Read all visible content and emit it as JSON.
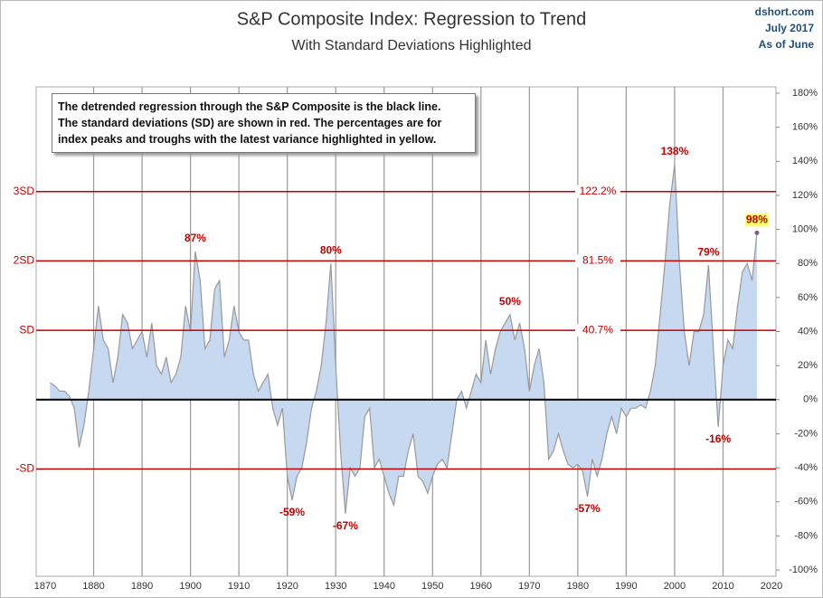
{
  "chart_data": {
    "type": "area",
    "title": "S&P Composite Index: Regression to Trend",
    "subtitle": "With Standard Deviations Highlighted",
    "source": "dshort.com",
    "date": "July 2017",
    "as_of": "As of June",
    "note": [
      "The detrended regression through the S&P Composite is the black line.",
      "The standard deviations (SD) are shown in red.  The percentages are for",
      "index peaks and troughs with the latest variance highlighted in yellow."
    ],
    "x": [
      1871,
      1872,
      1873,
      1874,
      1875,
      1876,
      1877,
      1878,
      1879,
      1880,
      1881,
      1882,
      1883,
      1884,
      1885,
      1886,
      1887,
      1888,
      1889,
      1890,
      1891,
      1892,
      1893,
      1894,
      1895,
      1896,
      1897,
      1898,
      1899,
      1900,
      1901,
      1902,
      1903,
      1904,
      1905,
      1906,
      1907,
      1908,
      1909,
      1910,
      1911,
      1912,
      1913,
      1914,
      1915,
      1916,
      1917,
      1918,
      1919,
      1920,
      1921,
      1922,
      1923,
      1924,
      1925,
      1926,
      1927,
      1928,
      1929,
      1930,
      1931,
      1932,
      1933,
      1934,
      1935,
      1936,
      1937,
      1938,
      1939,
      1940,
      1941,
      1942,
      1943,
      1944,
      1945,
      1946,
      1947,
      1948,
      1949,
      1950,
      1951,
      1952,
      1953,
      1954,
      1955,
      1956,
      1957,
      1958,
      1959,
      1960,
      1961,
      1962,
      1963,
      1964,
      1965,
      1966,
      1967,
      1968,
      1969,
      1970,
      1971,
      1972,
      1973,
      1974,
      1975,
      1976,
      1977,
      1978,
      1979,
      1980,
      1981,
      1982,
      1983,
      1984,
      1985,
      1986,
      1987,
      1988,
      1989,
      1990,
      1991,
      1992,
      1993,
      1994,
      1995,
      1996,
      1997,
      1998,
      1999,
      2000,
      2001,
      2002,
      2003,
      2004,
      2005,
      2006,
      2007,
      2008,
      2009,
      2010,
      2011,
      2012,
      2013,
      2014,
      2015,
      2016,
      2017
    ],
    "values": [
      10,
      8,
      5,
      5,
      2,
      -5,
      -28,
      -15,
      5,
      30,
      55,
      35,
      30,
      10,
      25,
      50,
      45,
      30,
      35,
      40,
      25,
      45,
      20,
      15,
      25,
      10,
      15,
      25,
      55,
      40,
      87,
      70,
      30,
      35,
      65,
      70,
      25,
      35,
      55,
      40,
      35,
      35,
      15,
      5,
      10,
      15,
      -5,
      -15,
      -5,
      -45,
      -59,
      -45,
      -40,
      -25,
      -5,
      5,
      20,
      45,
      80,
      20,
      -30,
      -67,
      -40,
      -45,
      -40,
      -10,
      -5,
      -40,
      -35,
      -45,
      -55,
      -62,
      -45,
      -45,
      -30,
      -20,
      -45,
      -48,
      -55,
      -45,
      -38,
      -35,
      -40,
      -20,
      0,
      5,
      -5,
      5,
      15,
      10,
      35,
      15,
      30,
      40,
      45,
      50,
      35,
      45,
      30,
      5,
      20,
      30,
      10,
      -35,
      -30,
      -20,
      -30,
      -38,
      -40,
      -38,
      -42,
      -57,
      -35,
      -45,
      -35,
      -20,
      -10,
      -20,
      -5,
      -10,
      -5,
      -5,
      -3,
      -5,
      5,
      20,
      50,
      80,
      115,
      138,
      80,
      40,
      20,
      40,
      40,
      50,
      79,
      30,
      -16,
      20,
      35,
      30,
      55,
      75,
      80,
      70,
      98
    ],
    "color": "#c6d9f0",
    "line_color": "#999999",
    "xlim": [
      1870,
      2020
    ],
    "xticks": [
      1870,
      1880,
      1890,
      1900,
      1910,
      1920,
      1930,
      1940,
      1950,
      1960,
      1970,
      1980,
      1990,
      2000,
      2010,
      2020
    ],
    "ylim": [
      -100,
      180
    ],
    "yticks": [
      {
        "value": -100,
        "label": "-100%"
      },
      {
        "value": -80,
        "label": "-80%"
      },
      {
        "value": -60,
        "label": "-60%"
      },
      {
        "value": -40,
        "label": "-40%"
      },
      {
        "value": -20,
        "label": "-20%"
      },
      {
        "value": 0,
        "label": "0%"
      },
      {
        "value": 20,
        "label": "20%"
      },
      {
        "value": 40,
        "label": "40%"
      },
      {
        "value": 60,
        "label": "60%"
      },
      {
        "value": 80,
        "label": "80%"
      },
      {
        "value": 100,
        "label": "100%"
      },
      {
        "value": 120,
        "label": "120%"
      },
      {
        "value": 140,
        "label": "140%"
      },
      {
        "value": 160,
        "label": "160%"
      },
      {
        "value": 180,
        "label": "180%"
      }
    ],
    "reference_lines": [
      {
        "value": 122.2,
        "label": "3SD",
        "value_label": "122.2%"
      },
      {
        "value": 81.5,
        "label": "2SD",
        "value_label": "81.5%"
      },
      {
        "value": 40.7,
        "label": "SD",
        "value_label": "40.7%"
      },
      {
        "value": -40.7,
        "label": "-SD"
      }
    ],
    "reference_color": "#c00000",
    "annotations": [
      {
        "x": 1901,
        "y": 87,
        "label": "87%"
      },
      {
        "x": 1929,
        "y": 80,
        "label": "80%"
      },
      {
        "x": 1966,
        "y": 50,
        "label": "50%"
      },
      {
        "x": 2000,
        "y": 138,
        "label": "138%"
      },
      {
        "x": 2007,
        "y": 79,
        "label": "79%"
      },
      {
        "x": 1921,
        "y": -59,
        "label": "-59%"
      },
      {
        "x": 1932,
        "y": -67,
        "label": "-67%"
      },
      {
        "x": 1982,
        "y": -57,
        "label": "-57%"
      },
      {
        "x": 2009,
        "y": -16,
        "label": "-16%"
      },
      {
        "x": 2017,
        "y": 98,
        "label": "98%",
        "highlight": "#ffff66"
      }
    ]
  }
}
